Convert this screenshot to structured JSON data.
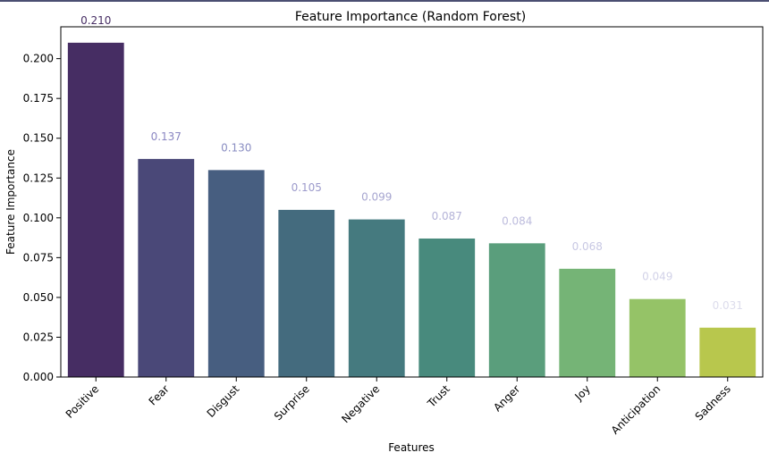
{
  "chart_data": {
    "type": "bar",
    "title": "Feature Importance (Random Forest)",
    "xlabel": "Features",
    "ylabel": "Feature Importance",
    "ylim": [
      0,
      0.22
    ],
    "yticks": [
      "0.000",
      "0.025",
      "0.050",
      "0.075",
      "0.100",
      "0.125",
      "0.150",
      "0.175",
      "0.200"
    ],
    "grid": false,
    "categories": [
      "Positive",
      "Fear",
      "Disgust",
      "Surprise",
      "Negative",
      "Trust",
      "Anger",
      "Joy",
      "Anticipation",
      "Sadness"
    ],
    "values": [
      0.21,
      0.137,
      0.13,
      0.105,
      0.099,
      0.087,
      0.084,
      0.068,
      0.049,
      0.031
    ],
    "value_labels": [
      "0.210",
      "0.137",
      "0.130",
      "0.105",
      "0.099",
      "0.087",
      "0.084",
      "0.068",
      "0.049",
      "0.031"
    ],
    "bar_colors": [
      "#462d63",
      "#4a4878",
      "#475e80",
      "#446b7e",
      "#457a7f",
      "#488a7d",
      "#5a9e7c",
      "#75b476",
      "#95c367",
      "#b8c74d"
    ],
    "label_colors": [
      "#462d63",
      "#8a86c2",
      "#8a8ec2",
      "#9c9acb",
      "#a7a6d0",
      "#b4b3d8",
      "#bdbcdd",
      "#c8c8e3",
      "#d2d2e8",
      "#dcdcec"
    ]
  }
}
